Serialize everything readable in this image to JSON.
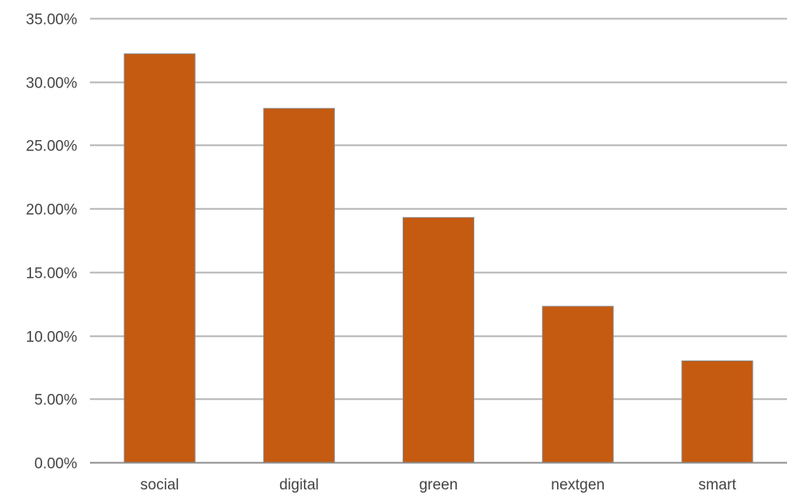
{
  "chart_data": {
    "type": "bar",
    "title": "",
    "xlabel": "",
    "ylabel": "",
    "categories": [
      "social",
      "digital",
      "green",
      "nextgen",
      "smart"
    ],
    "values": [
      32.2,
      27.9,
      19.3,
      12.3,
      8.0
    ],
    "ylim": [
      0,
      35
    ],
    "yticks": [
      0,
      5,
      10,
      15,
      20,
      25,
      30,
      35
    ],
    "ytick_labels": [
      "0.00%",
      "5.00%",
      "10.00%",
      "15.00%",
      "20.00%",
      "25.00%",
      "30.00%",
      "35.00%"
    ],
    "grid": true,
    "legend": "none",
    "colors": {
      "bar": "#c55a11",
      "bar_edge": "#8a8a8a",
      "grid": "#b3b3b3",
      "axis": "#8c8c8c",
      "text": "#444444"
    }
  }
}
